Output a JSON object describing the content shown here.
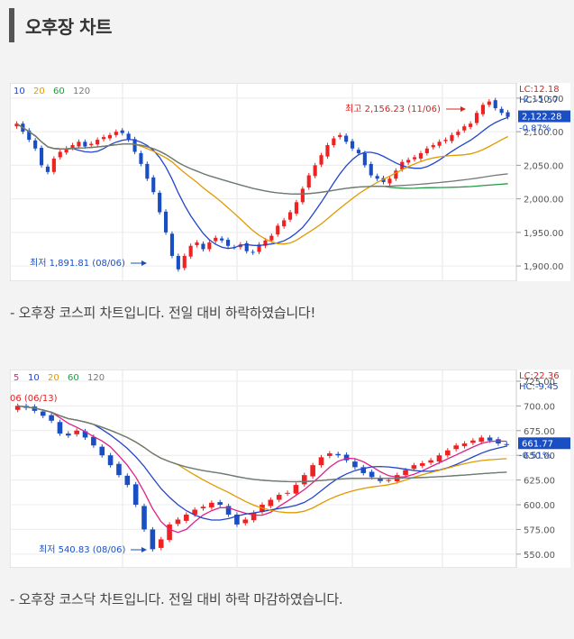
{
  "page": {
    "title": "오후장 차트"
  },
  "charts": [
    {
      "caption": "- 오후장 코스피 차트입니다. 전일 대비 하락하였습니다!",
      "legend": [
        "10",
        "20",
        "60",
        "120"
      ],
      "legend_colors": [
        "#2244cc",
        "#e09a00",
        "#229944",
        "#777777"
      ],
      "y_ticks": [
        "2,150.00",
        "2,100.00",
        "2,050.00",
        "2,000.00",
        "1,950.00",
        "1,900.00"
      ],
      "current_price": "2,122.28",
      "change_pct": "-0.87%",
      "lc": "LC:12.18",
      "hc": "HC:-1.57",
      "annot_high": "최고 2,156.23 (11/06)",
      "annot_low": "최저 1,891.81 (08/06)"
    },
    {
      "caption": "- 오후장 코스닥 차트입니다.  전일 대비 하락 마감하였습니다.",
      "legend": [
        "5",
        "10",
        "20",
        "60",
        "120"
      ],
      "legend_colors": [
        "#dd2288",
        "#2244cc",
        "#e09a00",
        "#229944",
        "#777777"
      ],
      "y_ticks": [
        "725.00",
        "700.00",
        "675.00",
        "650.00",
        "625.00",
        "600.00",
        "575.00",
        "550.00"
      ],
      "current_price": "661.77",
      "change_pct": "-0.51%",
      "lc": "LC:22.36",
      "hc": "HC:-9.45",
      "annot_high": "06 (06/13)",
      "annot_low": "최저 540.83 (08/06)"
    }
  ],
  "chart_data": [
    {
      "type": "candlestick",
      "title": "",
      "ylim": [
        1880,
        2170
      ],
      "y_ticks": [
        2150,
        2100,
        2050,
        2000,
        1950,
        1900
      ],
      "moving_averages": [
        "10",
        "20",
        "60",
        "120"
      ],
      "close": [
        2112,
        2100,
        2088,
        2075,
        2050,
        2040,
        2060,
        2070,
        2075,
        2080,
        2085,
        2078,
        2082,
        2088,
        2092,
        2095,
        2100,
        2098,
        2088,
        2070,
        2052,
        2030,
        2010,
        1980,
        1950,
        1915,
        1895,
        1915,
        1930,
        1935,
        1925,
        1935,
        1942,
        1938,
        1930,
        1928,
        1932,
        1922,
        1920,
        1932,
        1938,
        1945,
        1960,
        1968,
        1980,
        1995,
        2015,
        2035,
        2050,
        2065,
        2080,
        2090,
        2095,
        2085,
        2075,
        2068,
        2050,
        2035,
        2030,
        2025,
        2030,
        2042,
        2055,
        2058,
        2062,
        2068,
        2075,
        2080,
        2085,
        2088,
        2095,
        2100,
        2108,
        2112,
        2128,
        2140,
        2145,
        2135,
        2128,
        2122
      ],
      "high": 2156.23,
      "low": 1891.81,
      "high_date": "11/06",
      "low_date": "08/06",
      "last": 2122.28,
      "change_pct": -0.87
    },
    {
      "type": "candlestick",
      "title": "",
      "ylim": [
        538,
        735
      ],
      "y_ticks": [
        725,
        700,
        675,
        650,
        625,
        600,
        575,
        550
      ],
      "moving_averages": [
        "5",
        "10",
        "20",
        "60",
        "120"
      ],
      "close": [
        700,
        698,
        695,
        690,
        685,
        672,
        670,
        675,
        668,
        660,
        650,
        640,
        630,
        620,
        600,
        575,
        555,
        565,
        580,
        585,
        590,
        595,
        598,
        602,
        600,
        590,
        580,
        585,
        592,
        600,
        605,
        610,
        612,
        620,
        630,
        640,
        648,
        652,
        650,
        645,
        638,
        632,
        628,
        624,
        625,
        630,
        635,
        640,
        642,
        645,
        650,
        655,
        660,
        662,
        665,
        668,
        665,
        662,
        661
      ],
      "high_date": "06/13",
      "low": 540.83,
      "low_date": "08/06",
      "last": 661.77,
      "change_pct": -0.51
    }
  ]
}
